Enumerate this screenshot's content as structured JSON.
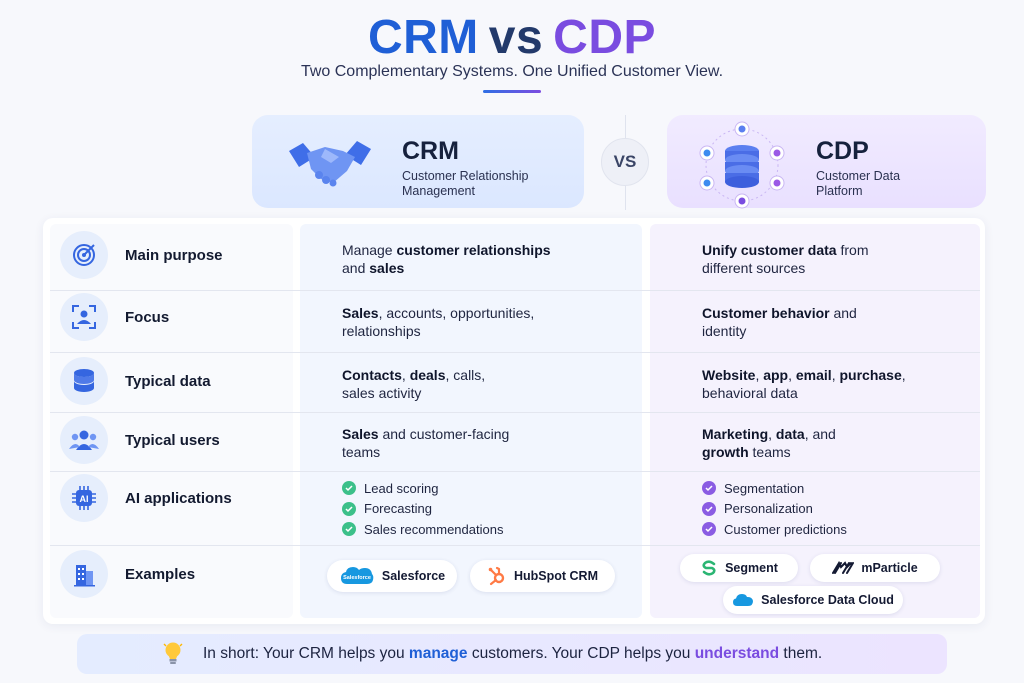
{
  "header": {
    "title_crm": "CRM",
    "title_vs": "vs",
    "title_cdp": "CDP",
    "subtitle": "Two Complementary Systems. One Unified Customer View.",
    "vs_badge": "VS"
  },
  "crm_card": {
    "title": "CRM",
    "subtitle_line1": "Customer Relationship",
    "subtitle_line2": "Management",
    "icon": "handshake-icon"
  },
  "cdp_card": {
    "title": "CDP",
    "subtitle_line1": "Customer Data",
    "subtitle_line2": "Platform",
    "icon": "database-network-icon"
  },
  "rows": [
    {
      "label": "Main purpose",
      "icon": "target-icon",
      "crm": {
        "b1": "",
        "t1": "Manage ",
        "b2": "customer relationships",
        "t2": "",
        "line2b": "",
        "line2": "and ",
        "line2b2": "sales"
      },
      "cdp": {
        "b1": "Unify customer data",
        "t1": " from",
        "line2": "different sources"
      }
    },
    {
      "label": "Focus",
      "icon": "user-focus-icon",
      "crm": {
        "b1": "Sales",
        "t1": ", accounts, opportunities,",
        "line2": "relationships"
      },
      "cdp": {
        "b1": "Customer behavior",
        "t1": " and",
        "line2": "identity"
      }
    },
    {
      "label": "Typical data",
      "icon": "database-icon",
      "crm": {
        "b1": "Contacts",
        "t1": ", ",
        "b2": "deals",
        "t2": ", calls,",
        "line2": "sales activity"
      },
      "cdp": {
        "b1": "Website",
        "t1": ", ",
        "b2": "app",
        "t2": ", ",
        "b3": "email",
        "t3": ", ",
        "b4": "purchase",
        "t4": ",",
        "line2": "behavioral data"
      }
    },
    {
      "label": "Typical users",
      "icon": "users-icon",
      "crm": {
        "b1": "Sales",
        "t1": " and customer-facing",
        "line2": "teams"
      },
      "cdp": {
        "b1": "Marketing",
        "t1": ", ",
        "b2": "data",
        "t2": ", and",
        "line2b": "growth",
        "line2": " teams"
      }
    },
    {
      "label": "AI applications",
      "icon": "ai-chip-icon",
      "crm_list": [
        "Lead scoring",
        "Forecasting",
        "Sales recommendations"
      ],
      "cdp_list": [
        "Segmentation",
        "Personalization",
        "Customer predictions"
      ]
    },
    {
      "label": "Examples",
      "icon": "building-icon",
      "crm_examples": [
        "Salesforce",
        "HubSpot CRM"
      ],
      "cdp_examples": [
        "Segment",
        "mParticle",
        "Salesforce Data Cloud"
      ],
      "salesforce_logo_text": "Salesforce"
    }
  ],
  "banner": {
    "prefix": "In short: Your CRM helps you ",
    "manage": "manage",
    "middle": " customers. Your CDP helps you ",
    "understand": "understand",
    "suffix": " them."
  },
  "colors": {
    "crm_blue": "#1f5fd6",
    "cdp_purple": "#7a4ce0",
    "check_green": "#3cc08a",
    "check_purple": "#8a5ce3"
  }
}
